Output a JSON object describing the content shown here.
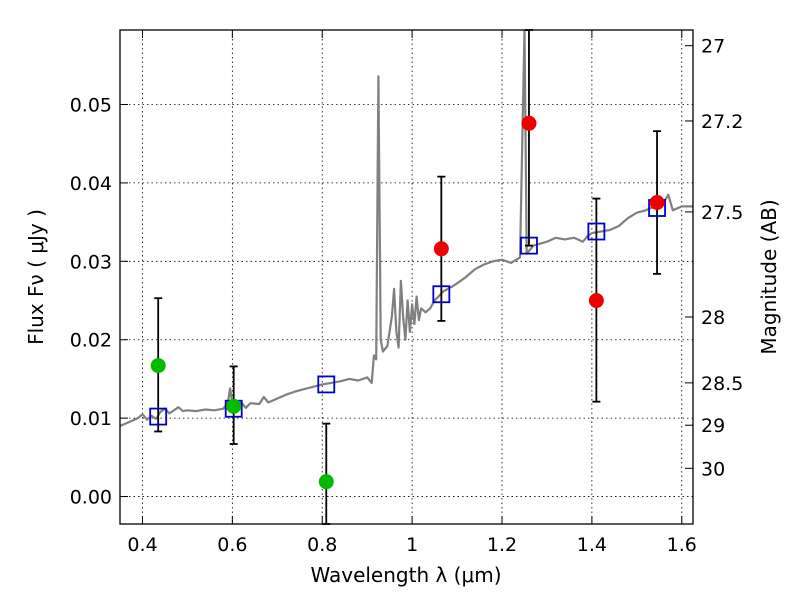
{
  "chart_data": {
    "type": "scatter",
    "xlabel": "Wavelength  λ (μm)",
    "ylabel": "Flux  Fν  ( μJy )",
    "y2label": "Magnitude (AB)",
    "xlim": [
      0.35,
      1.625
    ],
    "ylim": [
      -0.0035,
      0.0595
    ],
    "grid": true,
    "x_ticks": [
      0.4,
      0.6,
      0.8,
      1.0,
      1.2,
      1.4,
      1.6
    ],
    "x_tick_labels": [
      "0.4",
      "0.6",
      "0.8",
      "1",
      "1.2",
      "1.4",
      "1.6"
    ],
    "y_ticks": [
      0.0,
      0.01,
      0.02,
      0.03,
      0.04,
      0.05
    ],
    "y_tick_labels": [
      "0.00",
      "0.01",
      "0.02",
      "0.03",
      "0.04",
      "0.05"
    ],
    "mag_ticks": [
      {
        "label": "27",
        "flux": 0.0575
      },
      {
        "label": "27.2",
        "flux": 0.0479
      },
      {
        "label": "27.5",
        "flux": 0.0363
      },
      {
        "label": "28",
        "flux": 0.0229
      },
      {
        "label": "28.5",
        "flux": 0.0145
      },
      {
        "label": "29",
        "flux": 0.0091
      },
      {
        "label": "30",
        "flux": 0.0036
      }
    ],
    "colors": {
      "template": "#808080",
      "model_boxes": "#0000cc",
      "green_points": "#00bb00",
      "red_points": "#ee0000",
      "errorbars": "#000000"
    },
    "series": [
      {
        "kind": "line",
        "color_key": "template",
        "points": [
          [
            0.35,
            0.009
          ],
          [
            0.37,
            0.0095
          ],
          [
            0.39,
            0.01
          ],
          [
            0.4,
            0.0105
          ],
          [
            0.41,
            0.0098
          ],
          [
            0.42,
            0.0103
          ],
          [
            0.43,
            0.0099
          ],
          [
            0.44,
            0.0108
          ],
          [
            0.45,
            0.0112
          ],
          [
            0.46,
            0.0106
          ],
          [
            0.47,
            0.011
          ],
          [
            0.48,
            0.0114
          ],
          [
            0.49,
            0.0109
          ],
          [
            0.5,
            0.011
          ],
          [
            0.52,
            0.0109
          ],
          [
            0.54,
            0.0111
          ],
          [
            0.56,
            0.011
          ],
          [
            0.58,
            0.0112
          ],
          [
            0.59,
            0.012
          ],
          [
            0.595,
            0.0138
          ],
          [
            0.6,
            0.0118
          ],
          [
            0.61,
            0.0116
          ],
          [
            0.62,
            0.012
          ],
          [
            0.63,
            0.0113
          ],
          [
            0.64,
            0.0119
          ],
          [
            0.66,
            0.0118
          ],
          [
            0.67,
            0.0127
          ],
          [
            0.68,
            0.012
          ],
          [
            0.7,
            0.0125
          ],
          [
            0.72,
            0.013
          ],
          [
            0.74,
            0.0134
          ],
          [
            0.76,
            0.0137
          ],
          [
            0.78,
            0.014
          ],
          [
            0.8,
            0.0143
          ],
          [
            0.82,
            0.0145
          ],
          [
            0.84,
            0.0147
          ],
          [
            0.86,
            0.015
          ],
          [
            0.88,
            0.0148
          ],
          [
            0.9,
            0.0152
          ],
          [
            0.91,
            0.0145
          ],
          [
            0.915,
            0.018
          ],
          [
            0.92,
            0.0175
          ],
          [
            0.925,
            0.0536
          ],
          [
            0.93,
            0.02
          ],
          [
            0.935,
            0.0185
          ],
          [
            0.945,
            0.0192
          ],
          [
            0.955,
            0.023
          ],
          [
            0.96,
            0.0265
          ],
          [
            0.965,
            0.021
          ],
          [
            0.97,
            0.019
          ],
          [
            0.975,
            0.0275
          ],
          [
            0.98,
            0.023
          ],
          [
            0.985,
            0.02
          ],
          [
            0.99,
            0.025
          ],
          [
            0.995,
            0.021
          ],
          [
            1.0,
            0.0245
          ],
          [
            1.005,
            0.022
          ],
          [
            1.01,
            0.0255
          ],
          [
            1.015,
            0.0225
          ],
          [
            1.02,
            0.024
          ],
          [
            1.03,
            0.0235
          ],
          [
            1.04,
            0.024
          ],
          [
            1.05,
            0.025
          ],
          [
            1.07,
            0.0262
          ],
          [
            1.09,
            0.0268
          ],
          [
            1.1,
            0.0272
          ],
          [
            1.12,
            0.028
          ],
          [
            1.14,
            0.029
          ],
          [
            1.16,
            0.0296
          ],
          [
            1.18,
            0.03
          ],
          [
            1.2,
            0.0302
          ],
          [
            1.22,
            0.0298
          ],
          [
            1.24,
            0.0305
          ],
          [
            1.25,
            0.0595
          ],
          [
            1.255,
            0.031
          ],
          [
            1.27,
            0.032
          ],
          [
            1.3,
            0.0325
          ],
          [
            1.32,
            0.033
          ],
          [
            1.34,
            0.0328
          ],
          [
            1.36,
            0.033
          ],
          [
            1.38,
            0.0325
          ],
          [
            1.39,
            0.0332
          ],
          [
            1.4,
            0.0336
          ],
          [
            1.42,
            0.0338
          ],
          [
            1.44,
            0.034
          ],
          [
            1.46,
            0.0345
          ],
          [
            1.48,
            0.0355
          ],
          [
            1.5,
            0.0362
          ],
          [
            1.52,
            0.0365
          ],
          [
            1.54,
            0.037
          ],
          [
            1.56,
            0.0375
          ],
          [
            1.57,
            0.0385
          ],
          [
            1.58,
            0.0365
          ],
          [
            1.6,
            0.037
          ],
          [
            1.625,
            0.037
          ]
        ]
      },
      {
        "kind": "open_square",
        "color_key": "model_boxes",
        "points": [
          [
            0.435,
            0.0102
          ],
          [
            0.603,
            0.0112
          ],
          [
            0.809,
            0.0143
          ],
          [
            1.065,
            0.0258
          ],
          [
            1.26,
            0.032
          ],
          [
            1.41,
            0.0338
          ],
          [
            1.545,
            0.0368
          ]
        ]
      },
      {
        "kind": "filled_circle",
        "color_key": "green_points",
        "points": [
          {
            "x": 0.435,
            "y": 0.0167,
            "yerr_low": 0.0083,
            "yerr_high": 0.0253
          },
          {
            "x": 0.603,
            "y": 0.0115,
            "yerr_low": 0.0067,
            "yerr_high": 0.0166
          },
          {
            "x": 0.809,
            "y": 0.0019,
            "yerr_low": -0.0035,
            "yerr_high": 0.0093
          }
        ]
      },
      {
        "kind": "filled_circle",
        "color_key": "red_points",
        "points": [
          {
            "x": 1.065,
            "y": 0.0316,
            "yerr_low": 0.0224,
            "yerr_high": 0.0408
          },
          {
            "x": 1.26,
            "y": 0.0476,
            "yerr_low": 0.032,
            "yerr_high": 0.0595
          },
          {
            "x": 1.41,
            "y": 0.025,
            "yerr_low": 0.0121,
            "yerr_high": 0.038
          },
          {
            "x": 1.545,
            "y": 0.0375,
            "yerr_low": 0.0284,
            "yerr_high": 0.0466
          }
        ]
      }
    ]
  }
}
